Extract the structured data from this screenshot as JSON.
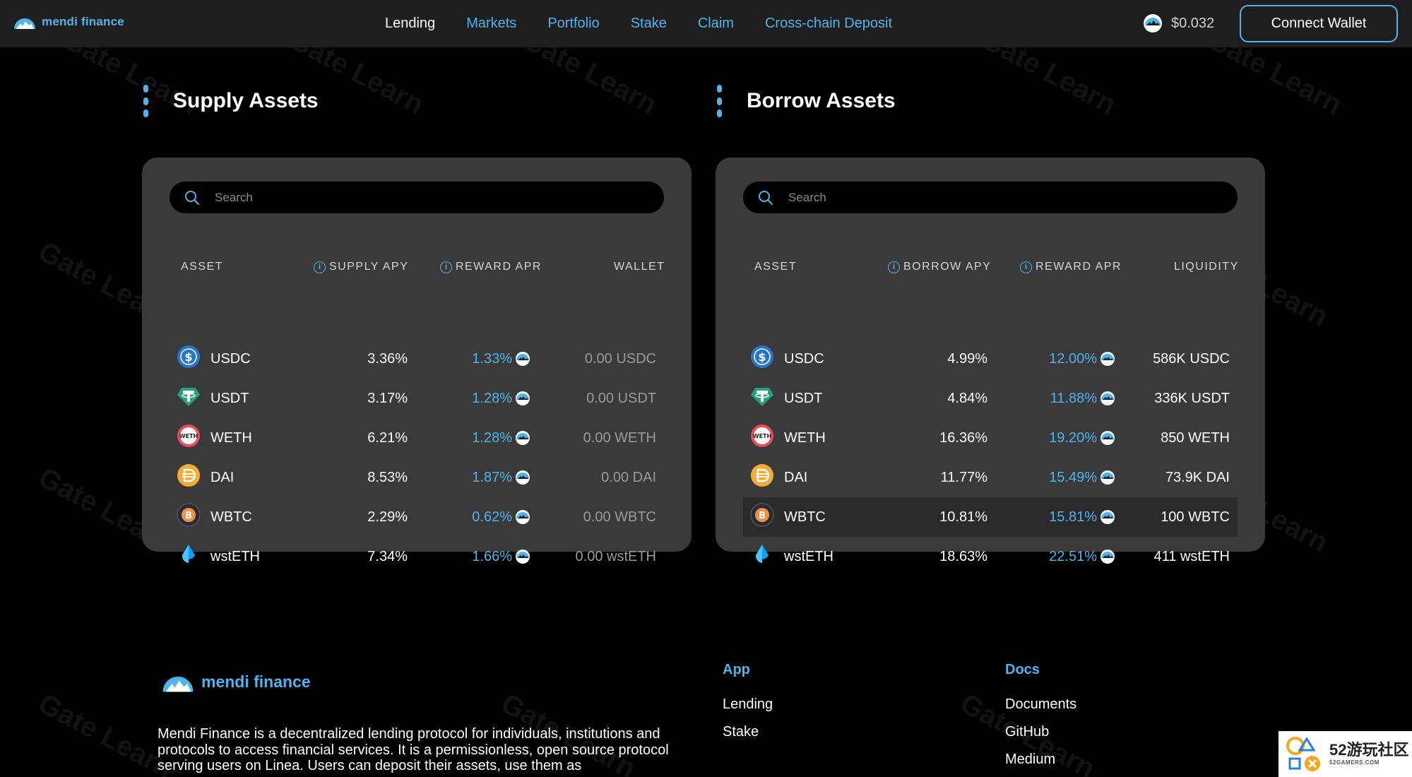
{
  "header": {
    "brand": "mendi finance",
    "nav": [
      "Lending",
      "Markets",
      "Portfolio",
      "Stake",
      "Claim",
      "Cross-chain Deposit"
    ],
    "active_nav": "Lending",
    "token_price": "$0.032",
    "connect_label": "Connect Wallet"
  },
  "supply": {
    "title": "Supply Assets",
    "search_placeholder": "Search",
    "columns": [
      "ASSET",
      "SUPPLY APY",
      "REWARD APR",
      "WALLET"
    ],
    "rows": [
      {
        "asset": "USDC",
        "apy": "3.36%",
        "reward": "1.33%",
        "wallet": "0.00 USDC"
      },
      {
        "asset": "USDT",
        "apy": "3.17%",
        "reward": "1.28%",
        "wallet": "0.00 USDT"
      },
      {
        "asset": "WETH",
        "apy": "6.21%",
        "reward": "1.28%",
        "wallet": "0.00 WETH"
      },
      {
        "asset": "DAI",
        "apy": "8.53%",
        "reward": "1.87%",
        "wallet": "0.00 DAI"
      },
      {
        "asset": "WBTC",
        "apy": "2.29%",
        "reward": "0.62%",
        "wallet": "0.00 WBTC"
      },
      {
        "asset": "wstETH",
        "apy": "7.34%",
        "reward": "1.66%",
        "wallet": "0.00 wstETH"
      }
    ]
  },
  "borrow": {
    "title": "Borrow Assets",
    "search_placeholder": "Search",
    "columns": [
      "ASSET",
      "BORROW APY",
      "REWARD APR",
      "LIQUIDITY"
    ],
    "rows": [
      {
        "asset": "USDC",
        "apy": "4.99%",
        "reward": "12.00%",
        "liquidity": "586K USDC"
      },
      {
        "asset": "USDT",
        "apy": "4.84%",
        "reward": "11.88%",
        "liquidity": "336K USDT"
      },
      {
        "asset": "WETH",
        "apy": "16.36%",
        "reward": "19.20%",
        "liquidity": "850 WETH"
      },
      {
        "asset": "DAI",
        "apy": "11.77%",
        "reward": "15.49%",
        "liquidity": "73.9K DAI"
      },
      {
        "asset": "WBTC",
        "apy": "10.81%",
        "reward": "15.81%",
        "liquidity": "100 WBTC"
      },
      {
        "asset": "wstETH",
        "apy": "18.63%",
        "reward": "22.51%",
        "liquidity": "411 wstETH"
      }
    ]
  },
  "footer": {
    "brand": "mendi finance",
    "description": "Mendi Finance is a decentralized lending protocol for individuals, institutions and protocols to access financial services. It is a permissionless, open source protocol serving users on Linea. Users can deposit their assets, use them as",
    "app_title": "App",
    "app_links": [
      "Lending",
      "Stake"
    ],
    "docs_title": "Docs",
    "docs_links": [
      "Documents",
      "GitHub",
      "Medium"
    ]
  },
  "watermark": "Gate Learn",
  "corner_logo": {
    "big": "52游玩社区",
    "small": "52GAMERS.COM"
  },
  "colors": {
    "accent": "#4fb3ec",
    "panel": "#3a3a3a",
    "header": "#1e1e1e",
    "background": "#000000"
  },
  "icons": {
    "USDC": "usdc-icon",
    "USDT": "usdt-icon",
    "WETH": "weth-icon",
    "DAI": "dai-icon",
    "WBTC": "wbtc-icon",
    "wstETH": "wsteth-icon"
  }
}
